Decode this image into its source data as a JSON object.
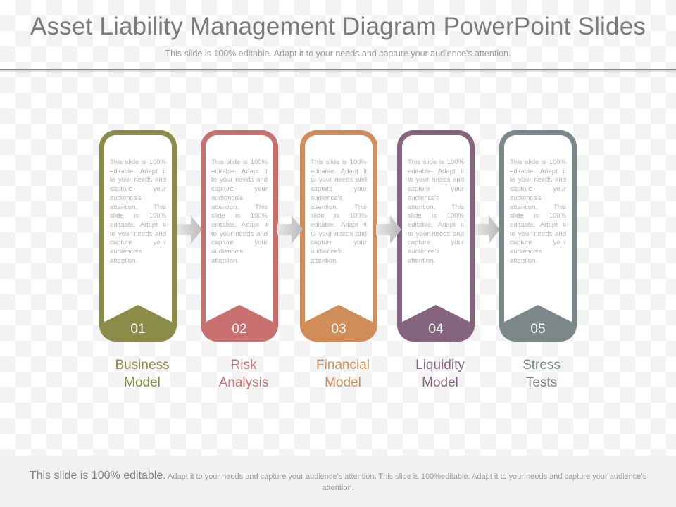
{
  "header": {
    "title": "Asset Liability Management Diagram PowerPoint Slides",
    "subtitle": "This slide is 100% editable. Adapt it to your needs and capture your audience's attention."
  },
  "steps": [
    {
      "number": "01",
      "color": "#8b8c4a",
      "body": "This slide is 100% editable. Adapt it to your needs and capture your audience's attention. This slide is 100% editable. Adapt it to your needs and capture your audience's attention.",
      "label_line1": "Business",
      "label_line2": "Model"
    },
    {
      "number": "02",
      "color": "#c8706f",
      "body": "This slide is 100% editable. Adapt it to your needs and capture your audience's attention. This slide is 100% editable. Adapt it to your needs and capture your audience's attention.",
      "label_line1": "Risk",
      "label_line2": "Analysis"
    },
    {
      "number": "03",
      "color": "#d08d5a",
      "body": "This slide is 100% editable. Adapt it to your needs and capture your audience's attention. This slide is 100% editable. Adapt it to your needs and capture your audience's attention.",
      "label_line1": "Financial",
      "label_line2": "Model"
    },
    {
      "number": "04",
      "color": "#85647f",
      "body": "This slide is 100% editable. Adapt it to your needs and capture your audience's attention. This slide is 100% editable. Adapt it to your needs and capture your audience's attention.",
      "label_line1": "Liquidity",
      "label_line2": "Model"
    },
    {
      "number": "05",
      "color": "#7c878a",
      "body": "This slide is 100% editable. Adapt it to your needs and capture your audience's attention. This slide is 100% editable. Adapt it to your needs and capture your audience's attention.",
      "label_line1": "Stress",
      "label_line2": "Tests"
    }
  ],
  "footer": {
    "lead": "This slide is 100% editable.",
    "rest": " Adapt it to your needs and capture your audience’s attention. This slide is 100%editable. Adapt it to your needs and capture your audience’s attention."
  },
  "colors": {
    "arrow": "#c4c4c4",
    "title": "#7a7a7a"
  }
}
